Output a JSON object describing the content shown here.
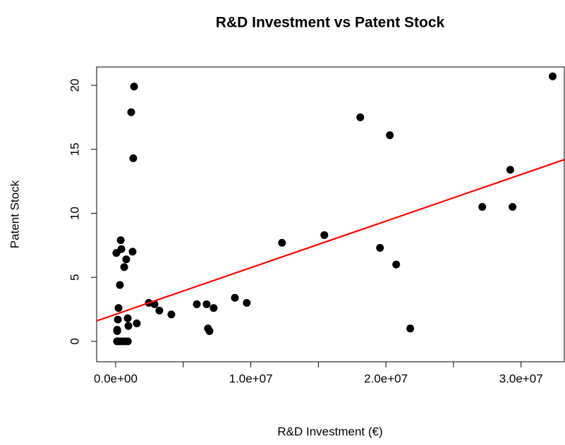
{
  "chart_data": {
    "type": "scatter",
    "title": "R&D Investment vs Patent Stock",
    "xlabel": "R&D Investment (€)",
    "ylabel": "Patent Stock",
    "x": [
      1360000,
      1150000,
      1300000,
      370000,
      1250000,
      50000,
      780000,
      630000,
      420000,
      310000,
      210000,
      160000,
      110000,
      110000,
      100000,
      300000,
      500000,
      700000,
      900000,
      890000,
      940000,
      1560000,
      2450000,
      2870000,
      3230000,
      4120000,
      6000000,
      6730000,
      6830000,
      6940000,
      7250000,
      8820000,
      9700000,
      12310000,
      15440000,
      18100000,
      19560000,
      20290000,
      20760000,
      21800000,
      27130000,
      29200000,
      29370000,
      32340000
    ],
    "values": [
      19.9,
      17.9,
      14.3,
      7.9,
      7.0,
      6.9,
      6.4,
      5.8,
      7.2,
      4.4,
      2.6,
      1.7,
      0.9,
      0.8,
      0,
      0,
      0,
      0,
      0,
      1.8,
      1.2,
      1.4,
      3.0,
      2.9,
      2.4,
      2.1,
      2.9,
      2.9,
      1.0,
      0.8,
      2.6,
      3.4,
      3.0,
      7.7,
      8.3,
      17.5,
      7.3,
      16.1,
      6.0,
      1.0,
      10.5,
      13.4,
      10.5,
      20.7
    ],
    "color": "#000000",
    "trend": {
      "intercept": 2.11,
      "slope": 3.64e-07,
      "color": "#ff0000"
    },
    "xlim": [
      -1410000,
      33200000
    ],
    "ylim": [
      -1.6,
      21.43
    ],
    "xticks": [
      {
        "value": 0,
        "label": "0.0e+00"
      },
      {
        "value": 10000000,
        "label": "1.0e+07"
      },
      {
        "value": 20000000,
        "label": "2.0e+07"
      },
      {
        "value": 30000000,
        "label": "3.0e+07"
      }
    ],
    "xticks_unlabeled": [
      5000000,
      15000000,
      25000000
    ],
    "yticks": [
      0,
      5,
      10,
      15,
      20
    ]
  }
}
